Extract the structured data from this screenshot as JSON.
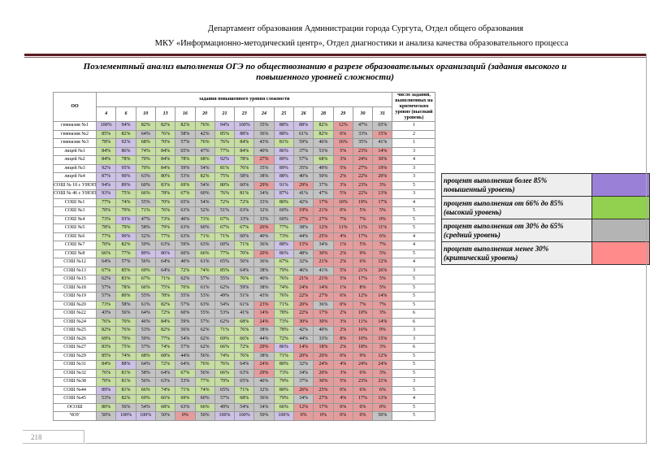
{
  "header": {
    "line1": "Департамент образования Администрации города Сургута, Отдел общего образования",
    "line2": "МКУ «Информационно-методический центр», Отдел диагностики и анализа качества образовательного процесса"
  },
  "title": "Поэлементный анализ выполнения ОГЭ по обществознанию в разрезе образовательных организаций (задания высокого и повышенного уровней сложности)",
  "table": {
    "col_oo": "ОО",
    "group_header": "задания повышенного уровня сложности",
    "count_header": "число заданий, выполненных на критическом уровне (высокий уровень)",
    "tasks": [
      "4",
      "6",
      "10",
      "13",
      "16",
      "20",
      "21",
      "23",
      "24",
      "25",
      "26",
      "28",
      "29",
      "30",
      "31"
    ],
    "rows": [
      {
        "name": "гимназия №1",
        "v": [
          100,
          94,
          82,
          82,
          82,
          76,
          94,
          100,
          35,
          88,
          88,
          82,
          12,
          47,
          65
        ],
        "count": "1"
      },
      {
        "name": "гимназия №2",
        "v": [
          85,
          82,
          64,
          76,
          58,
          42,
          85,
          88,
          36,
          88,
          61,
          82,
          6,
          33,
          15
        ],
        "count": "2"
      },
      {
        "name": "гимназия №3",
        "v": [
          78,
          92,
          68,
          70,
          57,
          76,
          76,
          84,
          43,
          81,
          59,
          46,
          16,
          35,
          41
        ],
        "count": "1"
      },
      {
        "name": "лицей №1",
        "v": [
          84,
          86,
          74,
          84,
          65,
          47,
          77,
          84,
          40,
          86,
          37,
          53,
          5,
          23,
          14
        ],
        "count": "3"
      },
      {
        "name": "лицей №2",
        "v": [
          84,
          78,
          70,
          84,
          78,
          68,
          92,
          78,
          27,
          89,
          57,
          68,
          3,
          24,
          30
        ],
        "count": "4"
      },
      {
        "name": "лицей №3",
        "v": [
          92,
          95,
          70,
          84,
          59,
          54,
          81,
          76,
          35,
          89,
          35,
          49,
          5,
          27,
          19
        ],
        "count": "3"
      },
      {
        "name": "лицей №4",
        "v": [
          87,
          90,
          63,
          80,
          53,
          82,
          75,
          58,
          38,
          88,
          40,
          50,
          2,
          22,
          20
        ],
        "count": "3"
      },
      {
        "name": "СОШ № 10 с УИОП",
        "v": [
          94,
          89,
          60,
          83,
          69,
          54,
          80,
          60,
          29,
          91,
          29,
          37,
          3,
          23,
          3
        ],
        "count": "5"
      },
      {
        "name": "СОШ № 46 с УИОП",
        "v": [
          93,
          75,
          66,
          78,
          67,
          60,
          76,
          81,
          34,
          87,
          41,
          47,
          5,
          22,
          13
        ],
        "count": "3"
      },
      {
        "name": "СОШ №1",
        "v": [
          77,
          74,
          55,
          70,
          65,
          54,
          72,
          72,
          33,
          80,
          42,
          17,
          10,
          19,
          17
        ],
        "count": "4"
      },
      {
        "name": "СОШ №3",
        "v": [
          70,
          79,
          71,
          76,
          63,
          52,
          51,
          63,
          32,
          60,
          19,
          21,
          0,
          5,
          5
        ],
        "count": "5"
      },
      {
        "name": "СОШ №4",
        "v": [
          73,
          93,
          47,
          73,
          40,
          73,
          67,
          33,
          33,
          60,
          27,
          27,
          7,
          7,
          0
        ],
        "count": "5"
      },
      {
        "name": "СОШ №5",
        "v": [
          78,
          79,
          58,
          79,
          63,
          60,
          67,
          67,
          26,
          77,
          38,
          12,
          11,
          11,
          11
        ],
        "count": "5"
      },
      {
        "name": "СОШ №6",
        "v": [
          77,
          90,
          52,
          77,
          63,
          71,
          71,
          60,
          40,
          73,
          44,
          25,
          4,
          17,
          6
        ],
        "count": "4"
      },
      {
        "name": "СОШ №7",
        "v": [
          70,
          82,
          59,
          63,
          59,
          63,
          60,
          71,
          36,
          88,
          15,
          34,
          1,
          5,
          7
        ],
        "count": "4"
      },
      {
        "name": "СОШ №8",
        "v": [
          66,
          77,
          89,
          86,
          60,
          66,
          77,
          70,
          20,
          86,
          48,
          30,
          2,
          9,
          5
        ],
        "count": "5"
      },
      {
        "name": "СОШ №12",
        "v": [
          64,
          57,
          56,
          64,
          40,
          61,
          65,
          56,
          36,
          67,
          32,
          21,
          2,
          6,
          12
        ],
        "count": "4"
      },
      {
        "name": "СОШ №13",
        "v": [
          67,
          85,
          69,
          64,
          72,
          74,
          85,
          64,
          38,
          79,
          46,
          41,
          5,
          21,
          26
        ],
        "count": "3"
      },
      {
        "name": "СОШ №15",
        "v": [
          62,
          83,
          67,
          71,
          62,
          57,
          55,
          76,
          40,
          76,
          21,
          21,
          5,
          17,
          5
        ],
        "count": "5"
      },
      {
        "name": "СОШ №18",
        "v": [
          57,
          78,
          66,
          75,
          70,
          61,
          62,
          59,
          38,
          74,
          24,
          14,
          1,
          8,
          5
        ],
        "count": "5"
      },
      {
        "name": "СОШ №19",
        "v": [
          57,
          80,
          55,
          78,
          55,
          53,
          49,
          51,
          43,
          76,
          22,
          27,
          6,
          12,
          14
        ],
        "count": "5"
      },
      {
        "name": "СОШ №20",
        "v": [
          73,
          58,
          61,
          82,
          57,
          63,
          54,
          61,
          23,
          71,
          20,
          36,
          0,
          7,
          7
        ],
        "count": "5"
      },
      {
        "name": "СОШ №22",
        "v": [
          43,
          56,
          64,
          72,
          60,
          55,
          53,
          41,
          14,
          78,
          22,
          17,
          2,
          10,
          3
        ],
        "count": "6"
      },
      {
        "name": "СОШ №24",
        "v": [
          76,
          70,
          46,
          84,
          59,
          57,
          62,
          68,
          24,
          73,
          30,
          30,
          3,
          11,
          14
        ],
        "count": "6"
      },
      {
        "name": "СОШ №25",
        "v": [
          82,
          76,
          53,
          82,
          56,
          62,
          71,
          76,
          38,
          78,
          42,
          40,
          2,
          16,
          9
        ],
        "count": "3"
      },
      {
        "name": "СОШ №26",
        "v": [
          69,
          79,
          59,
          77,
          54,
          62,
          69,
          66,
          44,
          72,
          44,
          33,
          8,
          10,
          15
        ],
        "count": "3"
      },
      {
        "name": "СОШ №27",
        "v": [
          83,
          75,
          57,
          74,
          57,
          62,
          66,
          72,
          29,
          86,
          14,
          18,
          2,
          18,
          3
        ],
        "count": "6"
      },
      {
        "name": "СОШ №29",
        "v": [
          85,
          74,
          68,
          68,
          44,
          56,
          74,
          76,
          38,
          71,
          20,
          29,
          0,
          9,
          12
        ],
        "count": "5"
      },
      {
        "name": "СОШ №31",
        "v": [
          84,
          88,
          64,
          72,
          64,
          76,
          76,
          64,
          24,
          80,
          32,
          24,
          4,
          24,
          24
        ],
        "count": "5"
      },
      {
        "name": "СОШ №32",
        "v": [
          76,
          81,
          58,
          64,
          67,
          56,
          66,
          63,
          29,
          73,
          34,
          20,
          3,
          6,
          3
        ],
        "count": "5"
      },
      {
        "name": "СОШ №38",
        "v": [
          70,
          81,
          56,
          63,
          53,
          77,
          79,
          65,
          40,
          79,
          37,
          30,
          5,
          23,
          21
        ],
        "count": "3"
      },
      {
        "name": "СОШ №44",
        "v": [
          89,
          81,
          66,
          74,
          71,
          74,
          65,
          71,
          32,
          80,
          26,
          25,
          0,
          6,
          6
        ],
        "count": "5"
      },
      {
        "name": "СОШ №45",
        "v": [
          53,
          82,
          69,
          66,
          69,
          60,
          57,
          68,
          36,
          79,
          34,
          27,
          4,
          17,
          13
        ],
        "count": "4"
      },
      {
        "name": "ОСОШ",
        "v": [
          80,
          56,
          54,
          68,
          63,
          66,
          49,
          54,
          34,
          66,
          12,
          17,
          0,
          0,
          0
        ],
        "count": "5"
      },
      {
        "name": "ЧОУ",
        "v": [
          50,
          100,
          100,
          50,
          0,
          50,
          100,
          100,
          50,
          100,
          0,
          0,
          0,
          0,
          50
        ],
        "count": "5"
      }
    ]
  },
  "legend": [
    {
      "text": "процент выполнения более 85% повышенный уровень)",
      "color": "#9b80d8"
    },
    {
      "text": "процент выполнения от 66% до 85% (высокий уровень)",
      "color": "#92d050"
    },
    {
      "text": "процент выполнения от 30% до 65% (средний уровень)",
      "color": "#b4b4b4"
    },
    {
      "text": "процент выполнения менее 30% (критический уровень)",
      "color": "#ff8b8b"
    }
  ],
  "page_number": "218"
}
